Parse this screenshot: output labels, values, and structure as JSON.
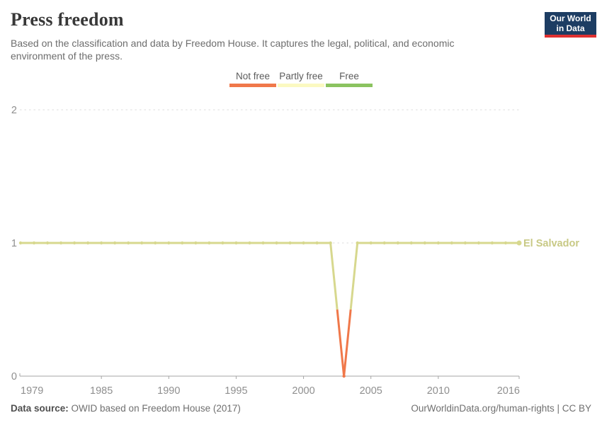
{
  "header": {
    "title": "Press freedom",
    "subtitle": "Based on the classification and data by Freedom House. It captures the legal, political, and economic environment of the press.",
    "logo": {
      "line1": "Our World",
      "line2": "in Data",
      "bg_color": "#1d3d63",
      "accent_color": "#e03131"
    }
  },
  "legend": {
    "items": [
      {
        "label": "Not free",
        "color": "#f0784a"
      },
      {
        "label": "Partly free",
        "color": "#fbf9c1"
      },
      {
        "label": "Free",
        "color": "#8bc360"
      }
    ]
  },
  "chart_data": {
    "type": "line",
    "title": "Press freedom",
    "series_label": "El Salvador",
    "x_range": [
      1979,
      2016
    ],
    "ylim": [
      0,
      2
    ],
    "yticks": [
      0,
      1,
      2
    ],
    "xticks": [
      1979,
      1985,
      1990,
      1995,
      2000,
      2005,
      2010,
      2016
    ],
    "value_meaning": {
      "0": "Not free",
      "1": "Partly free",
      "2": "Free"
    },
    "grid": "horizontal-dashed",
    "legend_position": "top-center",
    "x": [
      1979,
      1980,
      1981,
      1982,
      1983,
      1984,
      1985,
      1986,
      1987,
      1988,
      1989,
      1990,
      1991,
      1992,
      1993,
      1994,
      1995,
      1996,
      1997,
      1998,
      1999,
      2000,
      2001,
      2002,
      2003,
      2004,
      2005,
      2006,
      2007,
      2008,
      2009,
      2010,
      2011,
      2012,
      2013,
      2014,
      2015,
      2016
    ],
    "values": [
      1,
      1,
      1,
      1,
      1,
      1,
      1,
      1,
      1,
      1,
      1,
      1,
      1,
      1,
      1,
      1,
      1,
      1,
      1,
      1,
      1,
      1,
      1,
      1,
      0,
      1,
      1,
      1,
      1,
      1,
      1,
      1,
      1,
      1,
      1,
      1,
      1,
      1
    ],
    "colors": {
      "partly_free_line": "#d7d88e",
      "not_free_line": "#f0784a",
      "entity_label": "#c8c985",
      "grid": "#dcdcdc",
      "axis": "#a5a5a5",
      "tick_text": "#8f8f8f"
    }
  },
  "footer": {
    "source_label": "Data source:",
    "source_text": " OWID based on Freedom House (2017)",
    "link_text": "OurWorldinData.org/human-rights | CC BY"
  }
}
